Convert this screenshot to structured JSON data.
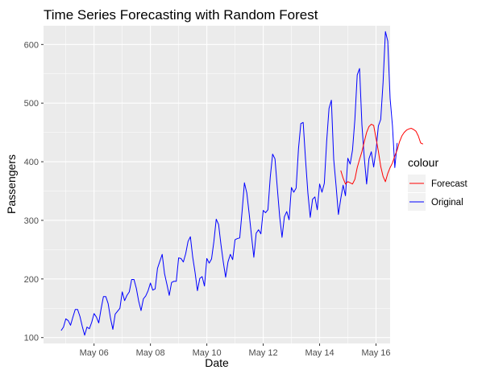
{
  "chart_data": {
    "type": "line",
    "title": "Time Series Forecasting with Random Forest",
    "xlabel": "Date",
    "ylabel": "Passengers",
    "x_ticks": [
      "May 06",
      "May 08",
      "May 10",
      "May 12",
      "May 14",
      "May 16"
    ],
    "y_ticks": [
      100,
      200,
      300,
      400,
      500,
      600
    ],
    "xlim": [
      "May 04 05:00",
      "May 16 12:00"
    ],
    "ylim": [
      90,
      632
    ],
    "x_start": "May 04 20:00",
    "x_step_hours": 2,
    "legend": {
      "title": "colour",
      "position": "right"
    },
    "grid": true,
    "series": [
      {
        "name": "Original",
        "color": "#0000FF",
        "values": [
          112,
          118,
          132,
          129,
          121,
          135,
          148,
          148,
          136,
          119,
          104,
          118,
          115,
          126,
          141,
          135,
          125,
          149,
          170,
          170,
          158,
          133,
          114,
          140,
          145,
          150,
          178,
          163,
          172,
          178,
          199,
          199,
          184,
          162,
          146,
          166,
          171,
          180,
          193,
          181,
          183,
          218,
          230,
          242,
          209,
          191,
          172,
          194,
          196,
          196,
          236,
          235,
          229,
          243,
          264,
          272,
          237,
          211,
          180,
          201,
          204,
          188,
          235,
          227,
          234,
          264,
          302,
          293,
          259,
          229,
          203,
          229,
          242,
          233,
          267,
          269,
          270,
          315,
          364,
          347,
          312,
          274,
          237,
          278,
          284,
          277,
          317,
          313,
          318,
          374,
          413,
          405,
          355,
          306,
          271,
          306,
          315,
          301,
          356,
          348,
          355,
          422,
          465,
          467,
          404,
          347,
          305,
          336,
          340,
          318,
          362,
          348,
          363,
          435,
          491,
          505,
          404,
          359,
          310,
          337,
          360,
          342,
          406,
          396,
          420,
          472,
          548,
          559,
          463,
          407,
          362,
          405,
          417,
          391,
          419,
          461,
          472,
          535,
          622,
          606,
          508,
          461,
          390,
          432
        ]
      },
      {
        "name": "Forecast",
        "color": "#FF0000",
        "start_index": 119,
        "values": [
          385,
          372,
          362,
          366,
          364,
          362,
          370,
          390,
          404,
          417,
          434,
          450,
          460,
          464,
          462,
          440,
          418,
          392,
          375,
          366,
          380,
          390,
          398,
          410,
          420,
          434,
          444,
          450,
          454,
          456,
          457,
          455,
          452,
          444,
          432,
          430
        ]
      }
    ]
  }
}
